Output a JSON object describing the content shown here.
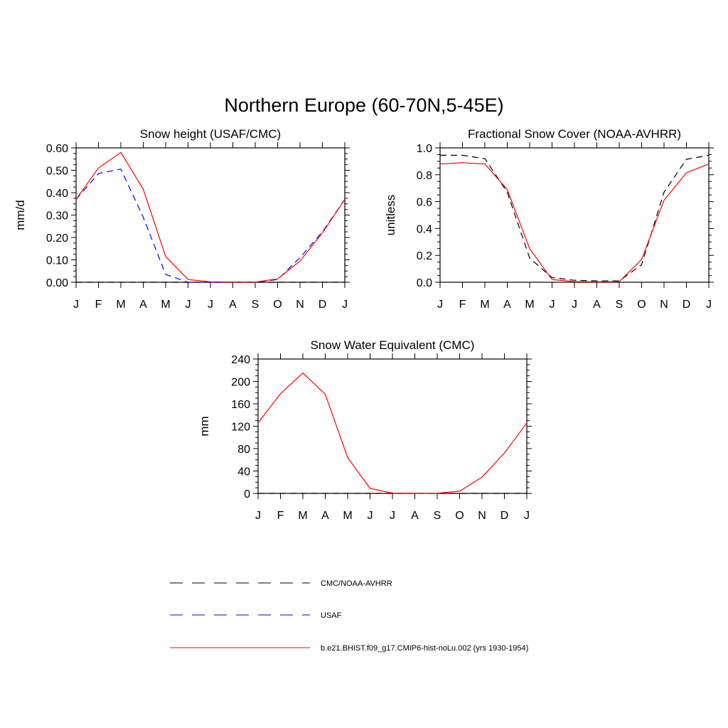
{
  "main_title": "Northern Europe (60-70N,5-45E)",
  "legend": [
    {
      "label": "CMC/NOAA-AVHRR",
      "color": "#000000",
      "dash": "dashed"
    },
    {
      "label": "USAF",
      "color": "#0000ff",
      "dash": "dashed"
    },
    {
      "label": "b.e21.BHIST.f09_g17.CMIP6-hist-noLu.002 (yrs 1930-1954)",
      "color": "#ff0000",
      "dash": "solid"
    }
  ],
  "chart_data": [
    {
      "type": "line",
      "title": "Snow height (USAF/CMC)",
      "xlabel": "",
      "ylabel": "mm/d",
      "categories": [
        "J",
        "F",
        "M",
        "A",
        "M",
        "J",
        "J",
        "A",
        "S",
        "O",
        "N",
        "D",
        "J"
      ],
      "ylim": [
        0,
        0.6
      ],
      "yticks": [
        "0.00",
        "0.10",
        "0.20",
        "0.30",
        "0.40",
        "0.50",
        "0.60"
      ],
      "series": [
        {
          "name": "CMC/NOAA-AVHRR",
          "color": "#000000",
          "dash": "dashed",
          "values": [
            0,
            0,
            0,
            0,
            0,
            0,
            0,
            0,
            0,
            0,
            0,
            0,
            0
          ]
        },
        {
          "name": "USAF",
          "color": "#0000ff",
          "dash": "dashed",
          "values": [
            0.37,
            0.485,
            0.505,
            0.29,
            0.035,
            0.0,
            0.0,
            0.0,
            0.0,
            0.012,
            0.11,
            0.225,
            0.37
          ]
        },
        {
          "name": "b.e21.BHIST.f09_g17.CMIP6-hist-noLu.002 (yrs 1930-1954)",
          "color": "#ff0000",
          "dash": "solid",
          "values": [
            0.37,
            0.51,
            0.58,
            0.415,
            0.115,
            0.012,
            0.002,
            0.001,
            0.001,
            0.015,
            0.095,
            0.22,
            0.37
          ]
        }
      ]
    },
    {
      "type": "line",
      "title": "Fractional Snow Cover (NOAA-AVHRR)",
      "xlabel": "",
      "ylabel": "unitless",
      "categories": [
        "J",
        "F",
        "M",
        "A",
        "M",
        "J",
        "J",
        "A",
        "S",
        "O",
        "N",
        "D",
        "J"
      ],
      "ylim": [
        0,
        1.0
      ],
      "yticks": [
        "0.0",
        "0.2",
        "0.4",
        "0.6",
        "0.8",
        "1.0"
      ],
      "series": [
        {
          "name": "CMC/NOAA-AVHRR",
          "color": "#000000",
          "dash": "dashed",
          "values": [
            0.945,
            0.945,
            0.92,
            0.67,
            0.18,
            0.035,
            0.015,
            0.01,
            0.01,
            0.13,
            0.67,
            0.915,
            0.945
          ]
        },
        {
          "name": "b.e21.BHIST.f09_g17.CMIP6-hist-noLu.002 (yrs 1930-1954)",
          "color": "#ff0000",
          "dash": "solid",
          "values": [
            0.88,
            0.89,
            0.88,
            0.69,
            0.25,
            0.02,
            0.005,
            0.003,
            0.004,
            0.17,
            0.61,
            0.815,
            0.88
          ]
        }
      ]
    },
    {
      "type": "line",
      "title": "Snow Water Equivalent (CMC)",
      "xlabel": "",
      "ylabel": "mm",
      "categories": [
        "J",
        "F",
        "M",
        "A",
        "M",
        "J",
        "J",
        "A",
        "S",
        "O",
        "N",
        "D",
        "J"
      ],
      "ylim": [
        0,
        240
      ],
      "yticks": [
        "0",
        "40",
        "80",
        "120",
        "160",
        "200",
        "240"
      ],
      "series": [
        {
          "name": "CMC/NOAA-AVHRR",
          "color": "#000000",
          "dash": "dashed",
          "values": [
            0,
            0,
            0,
            0,
            0,
            0,
            0,
            0,
            0,
            0,
            0,
            0,
            0
          ]
        },
        {
          "name": "b.e21.BHIST.f09_g17.CMIP6-hist-noLu.002 (yrs 1930-1954)",
          "color": "#ff0000",
          "dash": "solid",
          "values": [
            126,
            178,
            215,
            177,
            64,
            9,
            0.5,
            0.2,
            0.3,
            4,
            29,
            72,
            126
          ]
        }
      ]
    }
  ]
}
